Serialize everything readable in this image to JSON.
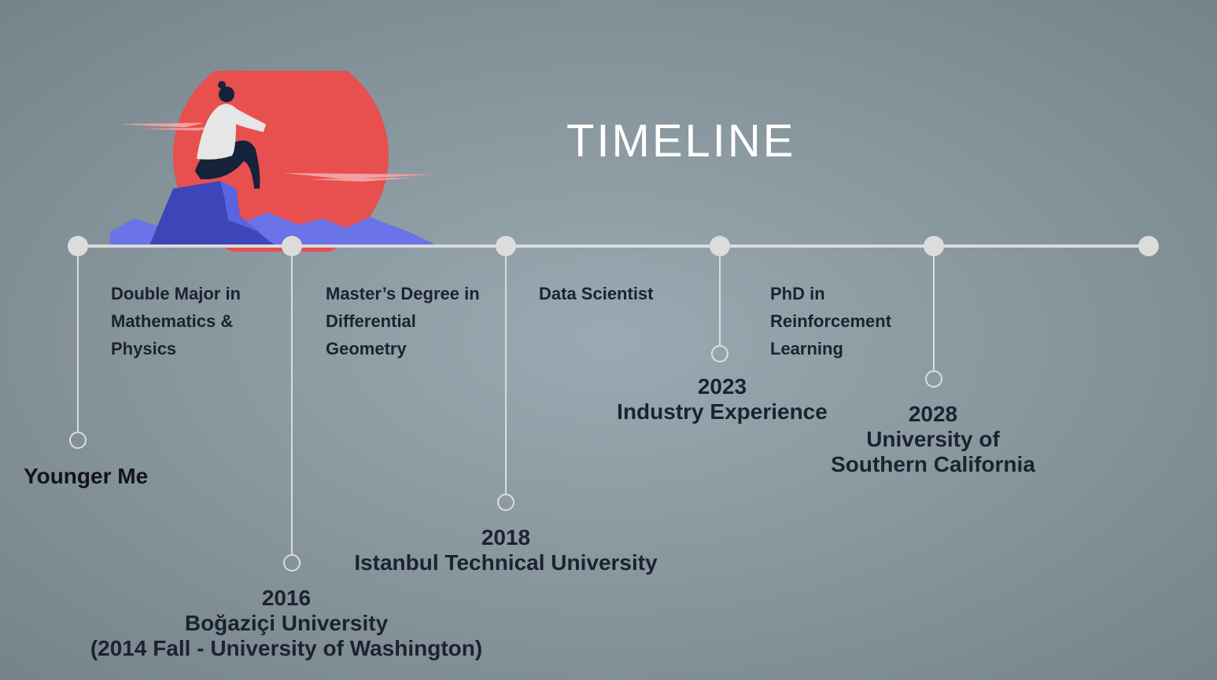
{
  "title": "TIMELINE",
  "colors": {
    "axis": "#dcdcdc",
    "text": "#1c2230",
    "sun": "#e84f4f",
    "mountain": "#5a63e0"
  },
  "milestones": [
    {
      "year": "",
      "name": "Younger Me",
      "sub": "",
      "next_step": "Double Major in Mathematics & Physics"
    },
    {
      "year": "2016",
      "name": "Boğaziçi University",
      "sub": "(2014 Fall - University of Washington)",
      "next_step": "Master’s Degree in Differential Geometry"
    },
    {
      "year": "2018",
      "name": "Istanbul Technical University",
      "sub": "",
      "next_step": "Data Scientist"
    },
    {
      "year": "2023",
      "name": "Industry Experience",
      "sub": "",
      "next_step": "PhD in Reinforcement Learning"
    },
    {
      "year": "2028",
      "name": "University of",
      "sub": "Southern California",
      "next_step": ""
    }
  ]
}
